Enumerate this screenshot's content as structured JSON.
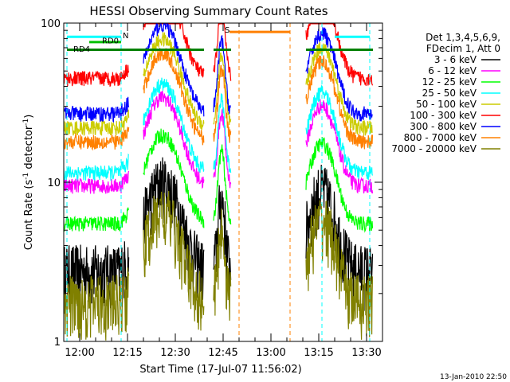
{
  "chart_data": {
    "type": "line",
    "title": "HESSI Observing Summary Count Rates",
    "xlabel": "Start Time (17-Jul-07 11:56:02)",
    "ylabel_main": "Count Rate (s",
    "ylabel_sup": "-1",
    "ylabel_mid": " detector",
    "ylabel_end": ")",
    "footer": "13-Jan-2010 22:50",
    "x_range_minutes": [
      -4,
      34
    ],
    "y_range": [
      1,
      100
    ],
    "y_scale": "log",
    "x_tick_labels": [
      {
        "t": 0,
        "label": "12:00"
      },
      {
        "t": 15,
        "label": "12:15"
      },
      {
        "t": 30,
        "label": "12:30"
      },
      {
        "t": 45,
        "label": "12:45"
      },
      {
        "t": 60,
        "label": "13:00"
      },
      {
        "t": 75,
        "label": "13:15"
      },
      {
        "t": 90,
        "label": "13:30"
      }
    ],
    "y_tick_labels": [
      {
        "v": 1,
        "label": "1"
      },
      {
        "v": 10,
        "label": "10"
      },
      {
        "v": 100,
        "label": "100"
      }
    ],
    "legend_header": [
      "Det 1,3,4,5,6,9,",
      "FDecim 1, Att 0"
    ],
    "series": [
      {
        "name": "3 - 6 keV",
        "color": "#000000",
        "level": 2.8
      },
      {
        "name": "6 - 12 keV",
        "color": "#ff00ff",
        "level": 9.5
      },
      {
        "name": "12 - 25 keV",
        "color": "#00ff00",
        "level": 5.5
      },
      {
        "name": "25 - 50 keV",
        "color": "#00ffff",
        "level": 11.5
      },
      {
        "name": "50 - 100 keV",
        "color": "#cccc00",
        "level": 22.0
      },
      {
        "name": "100 - 300 keV",
        "color": "#ff0000",
        "level": 45.0
      },
      {
        "name": "300 - 800 keV",
        "color": "#0000ff",
        "level": 27.0
      },
      {
        "name": "800 - 7000 keV",
        "color": "#ff8000",
        "level": 18.0
      },
      {
        "name": "7000 - 20000 keV",
        "color": "#808000",
        "level": 1.8
      }
    ],
    "bars": [
      {
        "label": "N",
        "color": "#00ffff",
        "y": 82
      },
      {
        "label": "RD0",
        "color": "#00c000",
        "y": 76
      },
      {
        "label": "RD4",
        "color": "#008000",
        "y": 68
      },
      {
        "label": "S",
        "color": "#ff8000",
        "y": 88
      }
    ]
  }
}
